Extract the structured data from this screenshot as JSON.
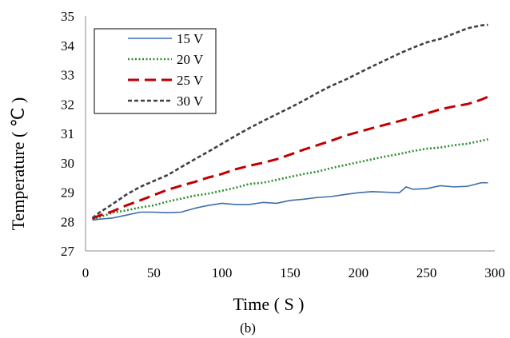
{
  "chart_data": {
    "type": "line",
    "xlabel": "Time ( S )",
    "ylabel": "Temperature ( ℃ )",
    "caption": "(b)",
    "xlim": [
      0,
      300
    ],
    "ylim": [
      27,
      35
    ],
    "xticks": [
      0,
      50,
      100,
      150,
      200,
      250,
      300
    ],
    "yticks": [
      27,
      28,
      29,
      30,
      31,
      32,
      33,
      34,
      35
    ],
    "grid": false,
    "legend_position": "top-left",
    "series": [
      {
        "name": "15 V",
        "color": "#3d6ea8",
        "dash": "solid",
        "x": [
          5,
          10,
          20,
          30,
          40,
          50,
          60,
          70,
          80,
          90,
          100,
          110,
          120,
          130,
          140,
          150,
          160,
          170,
          180,
          190,
          200,
          210,
          220,
          230,
          235,
          240,
          250,
          260,
          270,
          280,
          290,
          295
        ],
        "y": [
          28.05,
          28.08,
          28.12,
          28.22,
          28.32,
          28.32,
          28.3,
          28.32,
          28.45,
          28.55,
          28.62,
          28.58,
          28.58,
          28.65,
          28.62,
          28.72,
          28.76,
          28.82,
          28.85,
          28.92,
          28.98,
          29.02,
          29.0,
          28.98,
          29.18,
          29.1,
          29.12,
          29.22,
          29.18,
          29.2,
          29.32,
          29.32
        ]
      },
      {
        "name": "20 V",
        "color": "#2e8b2e",
        "dash": "dotted",
        "x": [
          5,
          10,
          20,
          30,
          40,
          50,
          60,
          70,
          80,
          90,
          100,
          110,
          120,
          130,
          140,
          150,
          160,
          170,
          180,
          190,
          200,
          210,
          220,
          230,
          240,
          250,
          260,
          270,
          280,
          290,
          295
        ],
        "y": [
          28.08,
          28.15,
          28.3,
          28.38,
          28.48,
          28.55,
          28.68,
          28.78,
          28.88,
          28.95,
          29.05,
          29.15,
          29.28,
          29.32,
          29.42,
          29.52,
          29.62,
          29.7,
          29.82,
          29.92,
          30.02,
          30.12,
          30.22,
          30.3,
          30.4,
          30.48,
          30.52,
          30.6,
          30.65,
          30.75,
          30.8
        ]
      },
      {
        "name": "25 V",
        "color": "#c00000",
        "dash": "longdash",
        "x": [
          5,
          10,
          20,
          30,
          40,
          50,
          60,
          70,
          80,
          90,
          100,
          110,
          120,
          130,
          140,
          150,
          160,
          170,
          180,
          190,
          200,
          210,
          220,
          230,
          240,
          250,
          260,
          270,
          280,
          290,
          295
        ],
        "y": [
          28.1,
          28.2,
          28.35,
          28.55,
          28.72,
          28.9,
          29.08,
          29.22,
          29.35,
          29.5,
          29.62,
          29.78,
          29.9,
          30.0,
          30.12,
          30.28,
          30.45,
          30.6,
          30.75,
          30.92,
          31.05,
          31.18,
          31.3,
          31.42,
          31.55,
          31.68,
          31.82,
          31.92,
          32.0,
          32.15,
          32.25
        ]
      },
      {
        "name": "30 V",
        "color": "#404040",
        "dash": "shortdash",
        "x": [
          5,
          10,
          20,
          30,
          40,
          50,
          60,
          70,
          80,
          90,
          100,
          110,
          120,
          130,
          140,
          150,
          160,
          170,
          180,
          190,
          200,
          210,
          220,
          230,
          240,
          250,
          260,
          270,
          280,
          290,
          295
        ],
        "y": [
          28.12,
          28.3,
          28.6,
          28.92,
          29.18,
          29.38,
          29.58,
          29.85,
          30.12,
          30.38,
          30.65,
          30.92,
          31.18,
          31.42,
          31.65,
          31.88,
          32.12,
          32.38,
          32.62,
          32.82,
          33.05,
          33.28,
          33.5,
          33.72,
          33.92,
          34.1,
          34.22,
          34.4,
          34.58,
          34.68,
          34.7
        ]
      }
    ]
  }
}
